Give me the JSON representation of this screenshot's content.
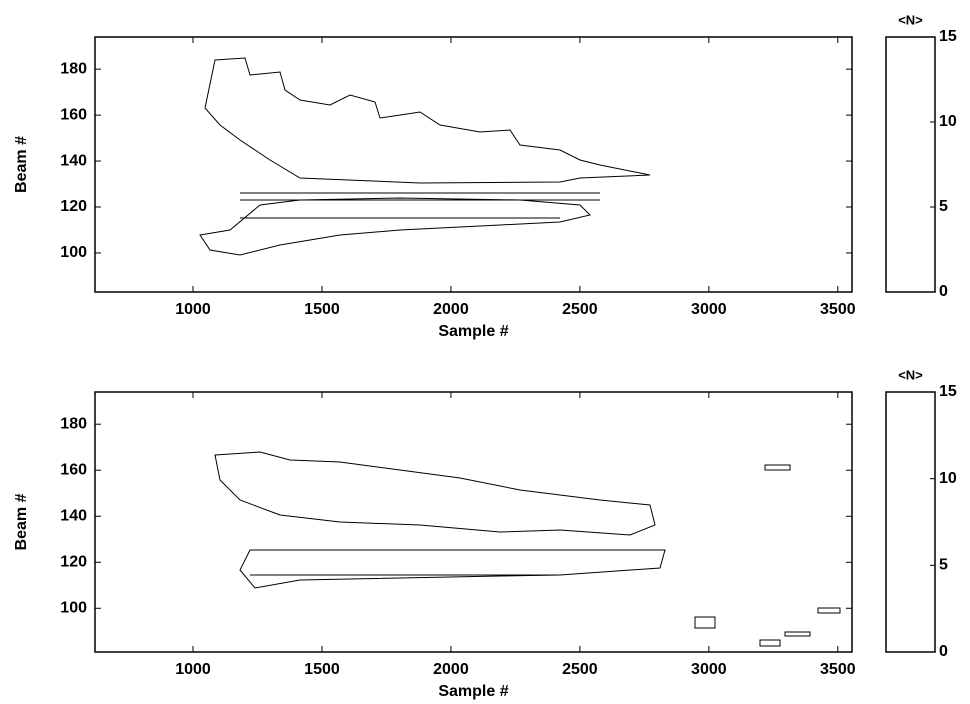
{
  "chart_data": [
    {
      "type": "heatmap",
      "xlabel": "Sample #",
      "ylabel": "Beam #",
      "xlim": [
        620,
        3555
      ],
      "xticks": [
        1000,
        1500,
        2000,
        2500,
        3000,
        3500
      ],
      "ylim": [
        83,
        194
      ],
      "yticks": [
        100,
        120,
        140,
        160,
        180
      ],
      "colorbar": {
        "label": "<N>",
        "lim": [
          0,
          15
        ],
        "ticks": [
          0,
          5,
          10,
          15
        ]
      }
    },
    {
      "type": "heatmap",
      "xlabel": "Sample #",
      "ylabel": "Beam #",
      "xlim": [
        620,
        3555
      ],
      "xticks": [
        1000,
        1500,
        2000,
        2500,
        3000,
        3500
      ],
      "ylim": [
        81,
        194
      ],
      "yticks": [
        100,
        120,
        140,
        160,
        180
      ],
      "colorbar": {
        "label": "<N>",
        "lim": [
          0,
          15
        ],
        "ticks": [
          0,
          5,
          10,
          15
        ]
      }
    }
  ]
}
